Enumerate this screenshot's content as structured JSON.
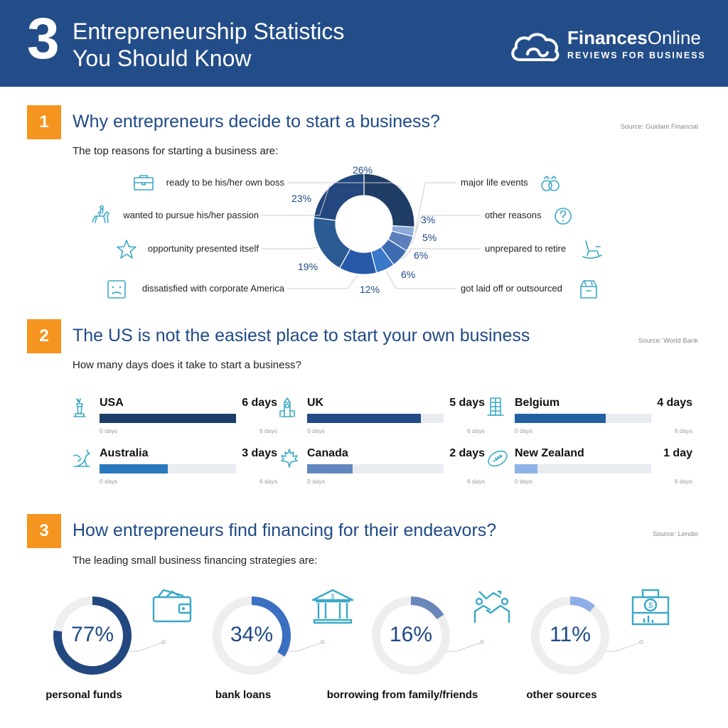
{
  "header": {
    "number": "3",
    "title_line1": "Entrepreneurship Statistics",
    "title_line2": "You Should Know",
    "brand_bold": "Finances",
    "brand_regular": "Online",
    "tagline": "REVIEWS FOR BUSINESS",
    "bg_color": "#234d88"
  },
  "section1": {
    "badge": "1",
    "title": "Why entrepreneurs decide to start a business?",
    "source": "Source: Guidant Financial",
    "subtitle": "The top reasons for starting a business are:"
  },
  "section2": {
    "badge": "2",
    "title": "The US is not the easiest place to start your own business",
    "source": "Source: World Bank",
    "subtitle": "How many days does it take to start a business?"
  },
  "section3": {
    "badge": "3",
    "title": "How entrepreneurs find financing for their endeavors?",
    "source": "Source: Lendio",
    "subtitle": "The leading small business financing strategies are:"
  },
  "chart_data": [
    {
      "type": "pie",
      "categories": [
        "ready to be his/her own boss",
        "major life events",
        "other reasons",
        "unprepared to retire",
        "got laid off or outsourced",
        "dissatisfied with corporate America",
        "opportunity presented itself",
        "wanted to pursue his/her passion"
      ],
      "values": [
        26,
        3,
        5,
        6,
        6,
        12,
        19,
        23
      ],
      "labels": [
        "26%",
        "3%",
        "5%",
        "6%",
        "6%",
        "12%",
        "19%",
        "23%"
      ],
      "icons": [
        "briefcase-icon",
        "rings-icon",
        "question-icon",
        "rocking-chair-icon",
        "box-icon",
        "sad-face-icon",
        "star-icon",
        "horse-rider-icon"
      ],
      "colors": [
        "#203d66",
        "#8aa8d8",
        "#5b7fba",
        "#3e6cb0",
        "#3a78c9",
        "#265aa8",
        "#2a5b92",
        "#23477e"
      ]
    },
    {
      "type": "bar",
      "categories": [
        "USA",
        "UK",
        "Belgium",
        "Australia",
        "Canada",
        "New Zealand"
      ],
      "values": [
        6,
        5,
        4,
        3,
        2,
        1
      ],
      "value_labels": [
        "6 days",
        "5 days",
        "4 days",
        "3 days",
        "2 days",
        "1 day"
      ],
      "axis_min_label": "0 days",
      "axis_max_label": "6 days",
      "xlim": [
        0,
        6
      ],
      "icons": [
        "statue-of-liberty-icon",
        "big-ben-icon",
        "building-icon",
        "kangaroo-icon",
        "maple-leaf-icon",
        "rugby-ball-icon"
      ],
      "colors": [
        "#1e3d68",
        "#224a86",
        "#2360a2",
        "#2a78bd",
        "#6287bf",
        "#8fb3e6"
      ]
    },
    {
      "type": "pie",
      "categories": [
        "personal funds",
        "bank loans",
        "borrowing from family/friends",
        "other sources"
      ],
      "values": [
        77,
        34,
        16,
        11
      ],
      "value_labels": [
        "77%",
        "34%",
        "16%",
        "11%"
      ],
      "icons": [
        "wallet-icon",
        "bank-icon",
        "handshake-icon",
        "cash-register-icon"
      ],
      "colors": [
        "#234880",
        "#3a6fc2",
        "#6a86bb",
        "#8eaee6"
      ],
      "track_color": "#eeeeee"
    }
  ]
}
